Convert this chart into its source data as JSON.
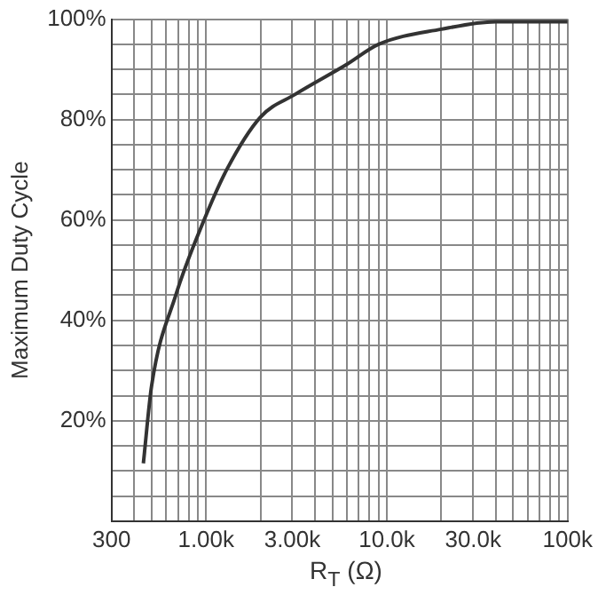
{
  "chart_data": {
    "type": "line",
    "xlabel": "R$_{T}$ (Ω)",
    "ylabel": "Maximum Duty Cycle",
    "x": [
      450,
      500,
      680,
      950,
      1300,
      2000,
      3100,
      6000,
      9000,
      20000,
      40000,
      100000
    ],
    "series": [
      {
        "color": "#333333",
        "values": [
          11.5,
          27,
          45,
          59,
          70,
          80.5,
          85,
          91,
          95,
          98,
          99.5,
          99.5
        ]
      }
    ],
    "log": "x",
    "xlim": [
      300,
      100000
    ],
    "xticks": [
      {
        "value": 300,
        "label": "300"
      },
      {
        "value": 400,
        "label": null
      },
      {
        "value": 500,
        "label": null
      },
      {
        "value": 600,
        "label": null
      },
      {
        "value": 700,
        "label": null
      },
      {
        "value": 800,
        "label": null
      },
      {
        "value": 900,
        "label": null
      },
      {
        "value": 1000,
        "label": "1.00k"
      },
      {
        "value": 2000,
        "label": null
      },
      {
        "value": 3000,
        "label": "3.00k"
      },
      {
        "value": 4000,
        "label": null
      },
      {
        "value": 5000,
        "label": null
      },
      {
        "value": 6000,
        "label": null
      },
      {
        "value": 7000,
        "label": null
      },
      {
        "value": 8000,
        "label": null
      },
      {
        "value": 9000,
        "label": null
      },
      {
        "value": 10000,
        "label": "10.0k"
      },
      {
        "value": 20000,
        "label": null
      },
      {
        "value": 30000,
        "label": "30.0k"
      },
      {
        "value": 40000,
        "label": null
      },
      {
        "value": 50000,
        "label": null
      },
      {
        "value": 60000,
        "label": null
      },
      {
        "value": 70000,
        "label": null
      },
      {
        "value": 80000,
        "label": null
      },
      {
        "value": 90000,
        "label": null
      },
      {
        "value": 100000,
        "label": "100k"
      }
    ],
    "ylim": [
      0,
      100
    ],
    "yticks": [
      {
        "value": 0,
        "label": null
      },
      {
        "value": 5,
        "label": null
      },
      {
        "value": 10,
        "label": null
      },
      {
        "value": 15,
        "label": null
      },
      {
        "value": 20,
        "label": "20%"
      },
      {
        "value": 25,
        "label": null
      },
      {
        "value": 30,
        "label": null
      },
      {
        "value": 35,
        "label": null
      },
      {
        "value": 40,
        "label": "40%"
      },
      {
        "value": 45,
        "label": null
      },
      {
        "value": 50,
        "label": null
      },
      {
        "value": 55,
        "label": null
      },
      {
        "value": 60,
        "label": "60%"
      },
      {
        "value": 65,
        "label": null
      },
      {
        "value": 70,
        "label": null
      },
      {
        "value": 75,
        "label": null
      },
      {
        "value": 80,
        "label": "80%"
      },
      {
        "value": 85,
        "label": null
      },
      {
        "value": 90,
        "label": null
      },
      {
        "value": 95,
        "label": null
      },
      {
        "value": 100,
        "label": "100%"
      }
    ],
    "grid": true,
    "legend": false,
    "marker": "none",
    "line_style": "solid"
  }
}
